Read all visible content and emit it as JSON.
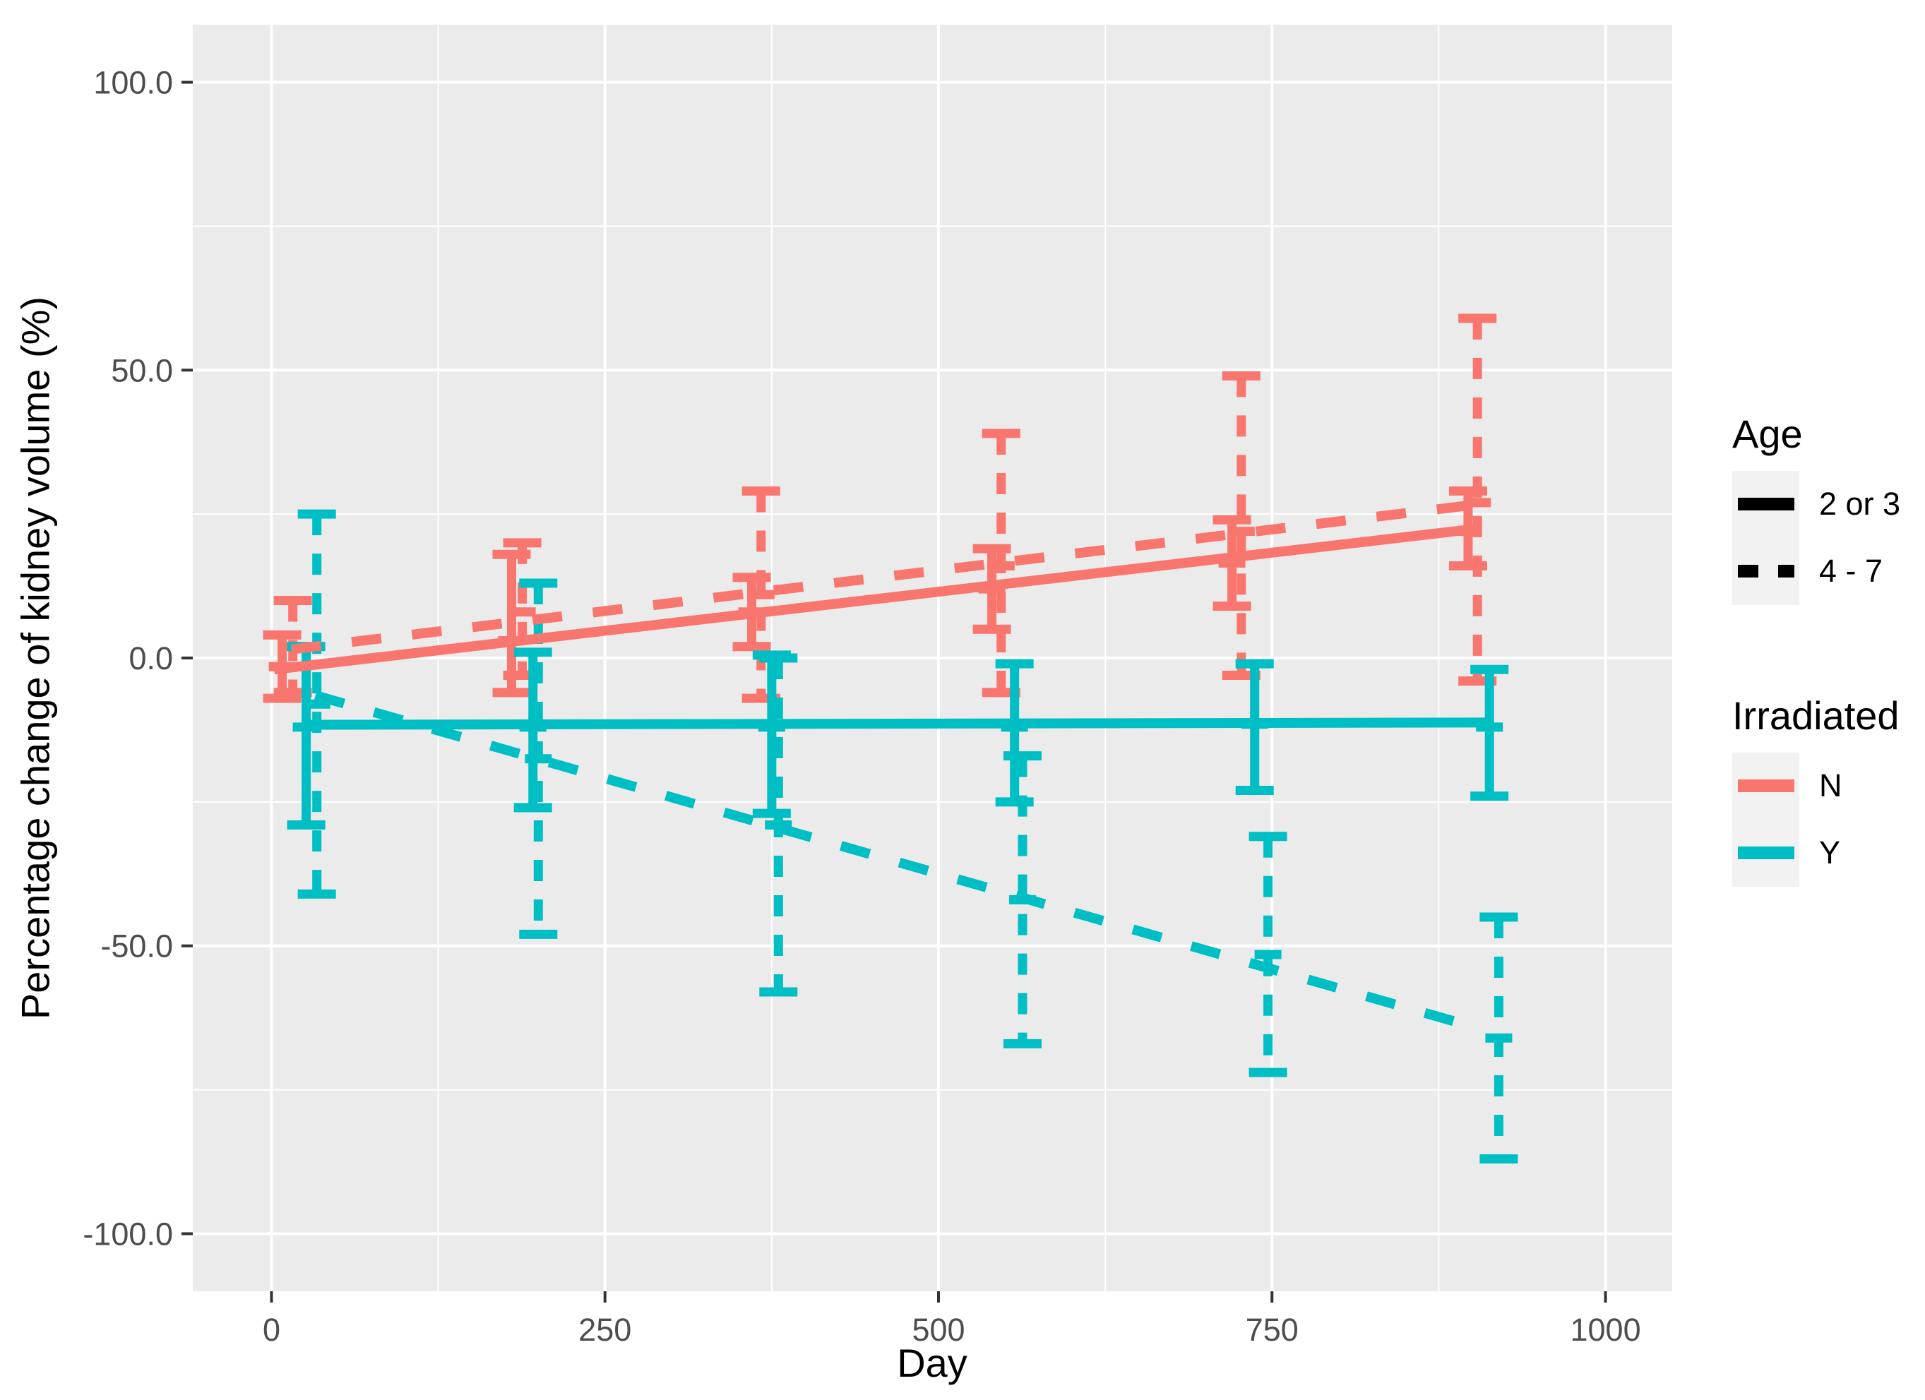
{
  "figure": {
    "background": "#FFFFFF",
    "panel_background": "#EBEBEB",
    "grid_color": "#FFFFFF",
    "tick_mark_color": "#333333",
    "tick_label_color": "#4D4D4D"
  },
  "axes": {
    "x_title": "Day",
    "y_title": "Percentage change of kidney volume (%)"
  },
  "legend": {
    "age": {
      "title": "Age",
      "entries": [
        {
          "label": "2 or 3",
          "linetype": "solid",
          "color": "#000000"
        },
        {
          "label": "4 - 7",
          "linetype": "dashed",
          "color": "#000000"
        }
      ]
    },
    "irradiated": {
      "title": "Irradiated",
      "entries": [
        {
          "label": "N",
          "linetype": "solid",
          "color": "#F8766D"
        },
        {
          "label": "Y",
          "linetype": "solid",
          "color": "#00BFC4"
        }
      ]
    }
  },
  "chart_data": {
    "type": "line",
    "title": "",
    "xlabel": "Day",
    "ylabel": "Percentage change of kidney volume (%)",
    "xlim": [
      -59,
      1050
    ],
    "ylim": [
      -110,
      110
    ],
    "grid": true,
    "legend_position": "right",
    "x_ticks": {
      "values": [
        0,
        250,
        500,
        750,
        1000
      ],
      "labels": [
        "0",
        "250",
        "500",
        "750",
        "1000"
      ]
    },
    "y_ticks": {
      "values": [
        100,
        50,
        0,
        -50,
        -100
      ],
      "labels": [
        "100.0",
        "50.0",
        "0.0",
        "-50.0",
        "-100.0"
      ]
    },
    "x_minor": [
      125,
      375,
      625,
      875
    ],
    "y_minor": [
      75,
      25,
      -25,
      -75
    ],
    "series": [
      {
        "name": "Irradiated N, Age 2 or 3",
        "irradiated": "N",
        "age": "2 or 3",
        "color": "#F8766D",
        "linetype": "solid",
        "trend": {
          "x": [
            2,
            905
          ],
          "y": [
            -2,
            22.5
          ]
        },
        "error_bars": [
          {
            "x": 8,
            "low": -7,
            "mid": -1.5,
            "high": 4
          },
          {
            "x": 180,
            "low": -6,
            "mid": 3,
            "high": 18
          },
          {
            "x": 360,
            "low": 2,
            "mid": 8,
            "high": 14
          },
          {
            "x": 540,
            "low": 5,
            "mid": 12,
            "high": 19
          },
          {
            "x": 720,
            "low": 9,
            "mid": 16.5,
            "high": 24
          },
          {
            "x": 897,
            "low": 16,
            "mid": 22,
            "high": 29
          }
        ]
      },
      {
        "name": "Irradiated N, Age 4 - 7",
        "irradiated": "N",
        "age": "4 - 7",
        "color": "#F8766D",
        "linetype": "dashed",
        "trend": {
          "x": [
            15,
            915
          ],
          "y": [
            1.5,
            27
          ]
        },
        "error_bars": [
          {
            "x": 16,
            "low": -6,
            "mid": 2,
            "high": 10
          },
          {
            "x": 188,
            "low": -3,
            "mid": 8,
            "high": 20
          },
          {
            "x": 367,
            "low": -7,
            "mid": 11,
            "high": 29
          },
          {
            "x": 547,
            "low": -6,
            "mid": 16,
            "high": 39
          },
          {
            "x": 727,
            "low": -3,
            "mid": 22,
            "high": 49
          },
          {
            "x": 904,
            "low": -4,
            "mid": 27,
            "high": 59
          }
        ]
      },
      {
        "name": "Irradiated Y, Age 2 or 3",
        "irradiated": "Y",
        "age": "2 or 3",
        "color": "#00BFC4",
        "linetype": "solid",
        "trend": {
          "x": [
            26,
            913
          ],
          "y": [
            -11.6,
            -11.2
          ]
        },
        "error_bars": [
          {
            "x": 26,
            "low": -29,
            "mid": -12,
            "high": 2
          },
          {
            "x": 196,
            "low": -26,
            "mid": -12,
            "high": 1
          },
          {
            "x": 375,
            "low": -27,
            "mid": -12,
            "high": 0.5
          },
          {
            "x": 557,
            "low": -25,
            "mid": -12,
            "high": -1
          },
          {
            "x": 737,
            "low": -23,
            "mid": -11.5,
            "high": -1
          },
          {
            "x": 913,
            "low": -24,
            "mid": -12,
            "high": -2
          }
        ]
      },
      {
        "name": "Irradiated Y, Age 4 - 7",
        "irradiated": "Y",
        "age": "4 - 7",
        "color": "#00BFC4",
        "linetype": "dashed",
        "trend": {
          "x": [
            33,
            900
          ],
          "y": [
            -6.5,
            -64
          ]
        },
        "error_bars": [
          {
            "x": 34,
            "low": -41,
            "mid": -8,
            "high": 25
          },
          {
            "x": 200,
            "low": -48,
            "mid": -17.5,
            "high": 13
          },
          {
            "x": 380,
            "low": -58,
            "mid": -29,
            "high": 0
          },
          {
            "x": 563,
            "low": -67,
            "mid": -42,
            "high": -17
          },
          {
            "x": 747,
            "low": -72,
            "mid": -51.5,
            "high": -31
          },
          {
            "x": 920,
            "low": -87,
            "mid": -66,
            "high": -45
          }
        ]
      }
    ]
  }
}
